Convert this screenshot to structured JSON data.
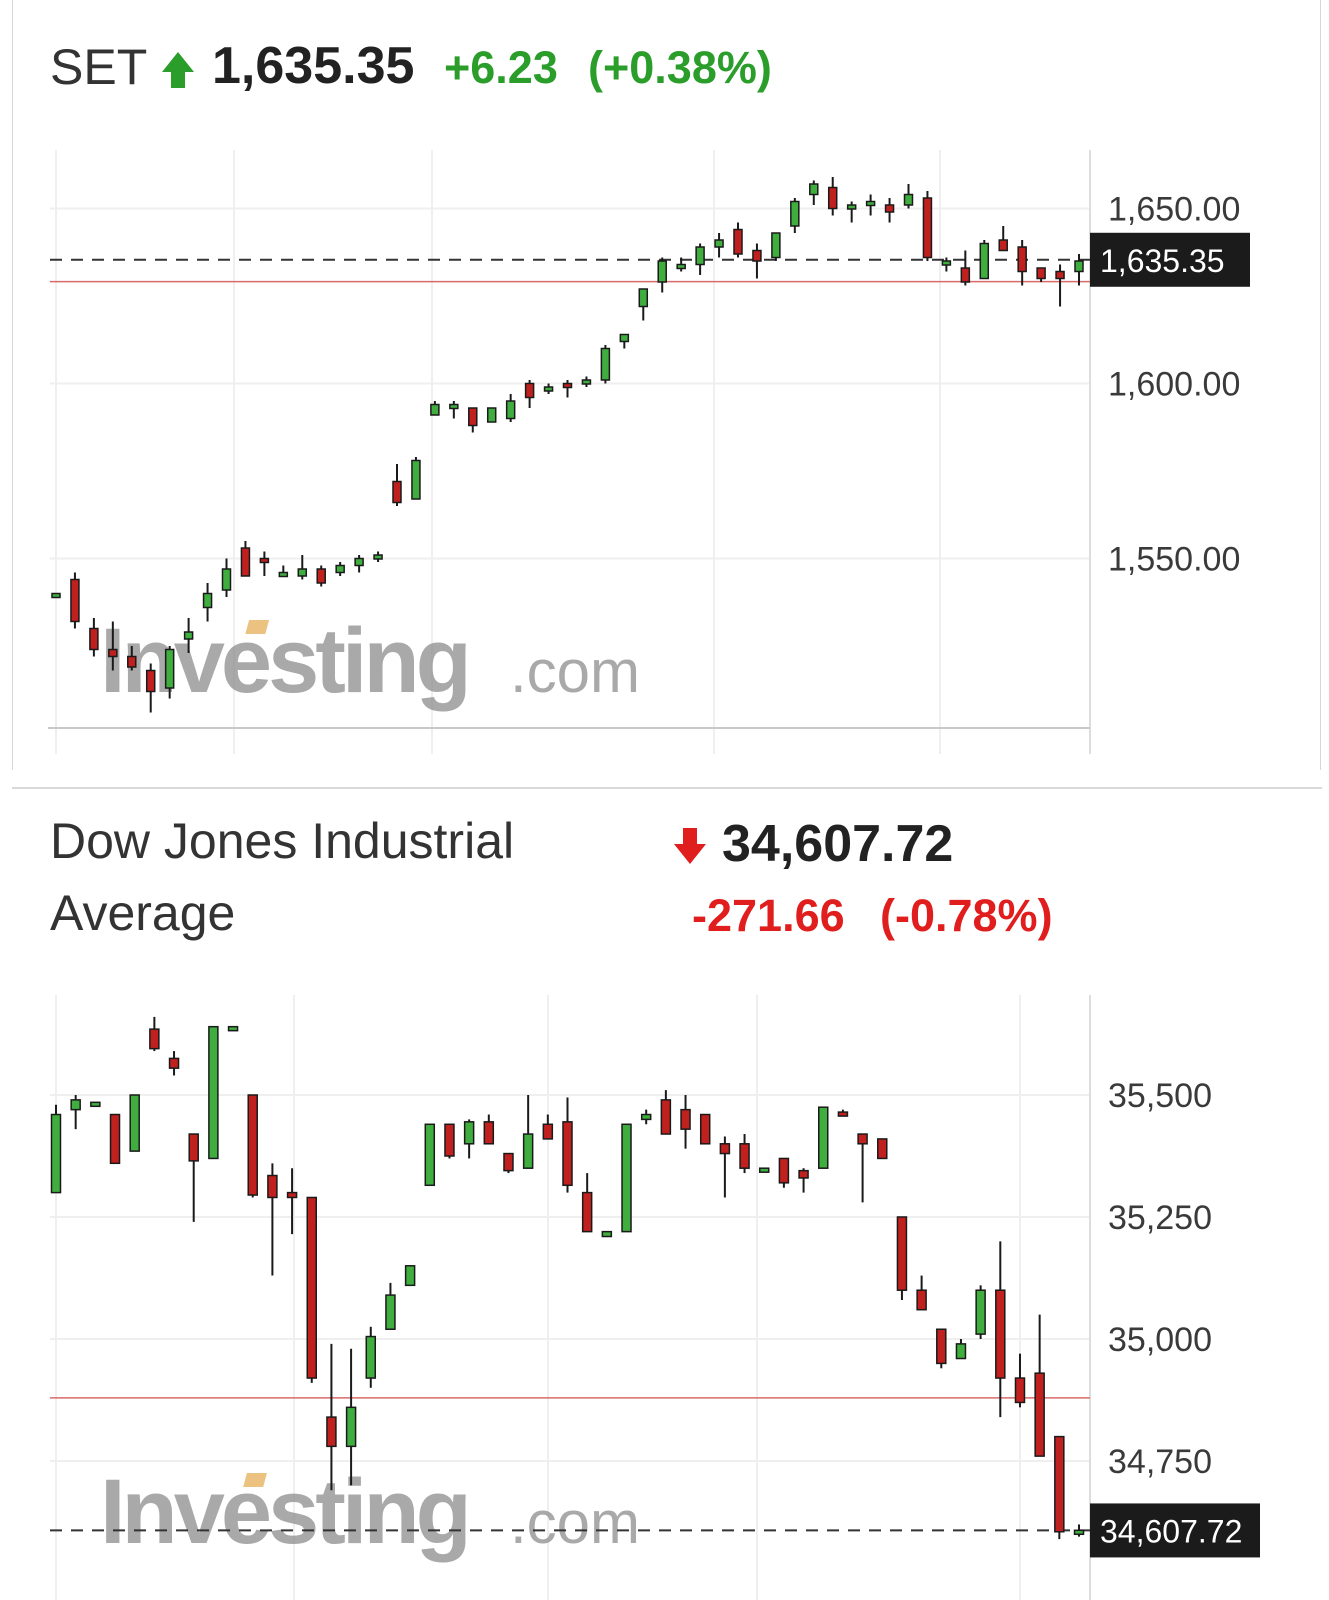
{
  "colors": {
    "up_fill": "#3fae3f",
    "down_fill": "#c0201e",
    "candle_stroke": "#1a1a1a",
    "grid": "#efefef",
    "ref_line": "#d96a6a",
    "dash": "#333333",
    "label_bg": "#1b1b1b"
  },
  "charts": [
    {
      "name": "SET",
      "price": "1,635.35",
      "change": "+6.23",
      "change_pct": "(+0.38%)",
      "direction": "up",
      "arrow_icon": "arrow-up-icon",
      "last_label": "1,635.35",
      "watermark": {
        "main": "Investing",
        "suffix": ".com"
      }
    },
    {
      "name_line1": "Dow Jones Industrial",
      "name_line2": "Average",
      "price": "34,607.72",
      "change": "-271.66",
      "change_pct": "(-0.78%)",
      "direction": "down",
      "arrow_icon": "arrow-down-icon",
      "last_label": "34,607.72",
      "watermark": {
        "main": "Investing",
        "suffix": ".com"
      }
    }
  ],
  "chart_data": [
    {
      "type": "candlestick",
      "title": "SET",
      "y_ticks": [
        1550,
        1600,
        1650
      ],
      "y_tick_labels": [
        "1,550.00",
        "1,600.00",
        "1,650.00"
      ],
      "ylim": [
        1503,
        1660
      ],
      "last_value": 1635.35,
      "reference_value": 1629.12,
      "grid": true,
      "candles": [
        [
          1540,
          1540,
          1540,
          1540
        ],
        [
          1544,
          1546,
          1530,
          1532
        ],
        [
          1530,
          1533,
          1522,
          1524
        ],
        [
          1524,
          1532,
          1518,
          1522
        ],
        [
          1522,
          1525,
          1518,
          1519
        ],
        [
          1518,
          1520,
          1506,
          1512
        ],
        [
          1513,
          1525,
          1510,
          1524
        ],
        [
          1527,
          1533,
          1523,
          1529
        ],
        [
          1536,
          1543,
          1532,
          1540
        ],
        [
          1541,
          1550,
          1539,
          1547
        ],
        [
          1553,
          1555,
          1545,
          1545
        ],
        [
          1550,
          1552,
          1545,
          1549
        ],
        [
          1545,
          1548,
          1545,
          1546
        ],
        [
          1545,
          1551,
          1544,
          1547
        ],
        [
          1547,
          1548,
          1542,
          1543
        ],
        [
          1546,
          1549,
          1545,
          1548
        ],
        [
          1548,
          1551,
          1546,
          1550
        ],
        [
          1550,
          1552,
          1549,
          1551
        ],
        [
          1572,
          1577,
          1565,
          1566
        ],
        [
          1567,
          1579,
          1567,
          1578
        ],
        [
          1591,
          1595,
          1591,
          1594
        ],
        [
          1593,
          1595,
          1590,
          1594
        ],
        [
          1593,
          1593,
          1586,
          1588
        ],
        [
          1589,
          1593,
          1589,
          1593
        ],
        [
          1590,
          1597,
          1589,
          1595
        ],
        [
          1600,
          1601,
          1593,
          1596
        ],
        [
          1598,
          1600,
          1597,
          1599
        ],
        [
          1600,
          1601,
          1596,
          1599
        ],
        [
          1600,
          1602,
          1599,
          1601
        ],
        [
          1601,
          1611,
          1600,
          1610
        ],
        [
          1612,
          1614,
          1610,
          1614
        ],
        [
          1622,
          1627,
          1618,
          1627
        ],
        [
          1629,
          1636,
          1626,
          1635
        ],
        [
          1633,
          1636,
          1632,
          1634
        ],
        [
          1634,
          1640,
          1631,
          1639
        ],
        [
          1639,
          1643,
          1636,
          1641
        ],
        [
          1644,
          1646,
          1636,
          1637
        ],
        [
          1638,
          1640,
          1630,
          1635
        ],
        [
          1636,
          1643,
          1635,
          1643
        ],
        [
          1645,
          1653,
          1643,
          1652
        ],
        [
          1654,
          1658,
          1651,
          1657
        ],
        [
          1656,
          1659,
          1648,
          1650
        ],
        [
          1650,
          1652,
          1646,
          1651
        ],
        [
          1651,
          1654,
          1648,
          1652
        ],
        [
          1651,
          1653,
          1646,
          1649
        ],
        [
          1651,
          1657,
          1650,
          1654
        ],
        [
          1653,
          1655,
          1635,
          1636
        ],
        [
          1634,
          1636,
          1632,
          1635
        ],
        [
          1633,
          1638,
          1628,
          1629
        ],
        [
          1630,
          1641,
          1630,
          1640
        ],
        [
          1641,
          1645,
          1638,
          1638
        ],
        [
          1639,
          1641,
          1628,
          1632
        ],
        [
          1633,
          1633,
          1629,
          1630
        ],
        [
          1632,
          1634,
          1622,
          1630
        ],
        [
          1632,
          1637,
          1628,
          1635
        ]
      ]
    },
    {
      "type": "candlestick",
      "title": "Dow Jones Industrial Average",
      "y_ticks": [
        34750,
        35000,
        35250,
        35500
      ],
      "y_tick_labels": [
        "34,750",
        "35,000",
        "35,250",
        "35,500"
      ],
      "ylim": [
        34580,
        35720
      ],
      "last_value": 34607.72,
      "reference_value": 34879.38,
      "grid": true,
      "candles": [
        [
          35300,
          35480,
          35300,
          35460
        ],
        [
          35470,
          35500,
          35430,
          35490
        ],
        [
          35485,
          35485,
          35485,
          35485
        ],
        [
          35460,
          35460,
          35360,
          35360
        ],
        [
          35385,
          35500,
          35385,
          35500
        ],
        [
          35635,
          35660,
          35590,
          35595
        ],
        [
          35575,
          35590,
          35540,
          35555
        ],
        [
          35420,
          35420,
          35240,
          35365
        ],
        [
          35370,
          35640,
          35370,
          35640
        ],
        [
          35640,
          35640,
          35640,
          35640
        ],
        [
          35500,
          35500,
          35290,
          35295
        ],
        [
          35335,
          35360,
          35130,
          35290
        ],
        [
          35300,
          35350,
          35215,
          35290
        ],
        [
          35290,
          35290,
          34910,
          34920
        ],
        [
          34840,
          34990,
          34690,
          34780
        ],
        [
          34780,
          34980,
          34700,
          34860
        ],
        [
          34920,
          35025,
          34900,
          35005
        ],
        [
          35020,
          35115,
          35020,
          35090
        ],
        [
          35110,
          35150,
          35110,
          35150
        ],
        [
          35315,
          35440,
          35315,
          35440
        ],
        [
          35440,
          35440,
          35370,
          35375
        ],
        [
          35400,
          35450,
          35370,
          35445
        ],
        [
          35445,
          35460,
          35400,
          35400
        ],
        [
          35380,
          35380,
          35340,
          35345
        ],
        [
          35350,
          35500,
          35350,
          35420
        ],
        [
          35440,
          35460,
          35410,
          35410
        ],
        [
          35445,
          35495,
          35300,
          35315
        ],
        [
          35300,
          35340,
          35220,
          35220
        ],
        [
          35210,
          35220,
          35210,
          35220
        ],
        [
          35220,
          35440,
          35220,
          35440
        ],
        [
          35450,
          35470,
          35440,
          35460
        ],
        [
          35490,
          35510,
          35420,
          35420
        ],
        [
          35470,
          35500,
          35390,
          35430
        ],
        [
          35460,
          35460,
          35400,
          35400
        ],
        [
          35400,
          35415,
          35290,
          35380
        ],
        [
          35400,
          35420,
          35340,
          35350
        ],
        [
          35350,
          35350,
          35350,
          35350
        ],
        [
          35370,
          35370,
          35310,
          35320
        ],
        [
          35345,
          35350,
          35300,
          35330
        ],
        [
          35350,
          35475,
          35350,
          35475
        ],
        [
          35465,
          35470,
          35460,
          35460
        ],
        [
          35420,
          35420,
          35280,
          35400
        ],
        [
          35410,
          35410,
          35370,
          35370
        ],
        [
          35250,
          35250,
          35080,
          35100
        ],
        [
          35100,
          35130,
          35060,
          35060
        ],
        [
          35020,
          35020,
          34940,
          34950
        ],
        [
          34960,
          35000,
          34960,
          34990
        ],
        [
          35010,
          35110,
          35000,
          35100
        ],
        [
          35100,
          35200,
          34840,
          34920
        ],
        [
          34920,
          34970,
          34860,
          34870
        ],
        [
          34930,
          35050,
          34760,
          34760
        ],
        [
          34800,
          34800,
          34590,
          34605
        ],
        [
          34600,
          34620,
          34595,
          34608
        ]
      ]
    }
  ]
}
